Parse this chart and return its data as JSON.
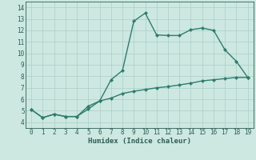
{
  "xlabel": "Humidex (Indice chaleur)",
  "xlim": [
    -0.5,
    19.5
  ],
  "ylim": [
    3.5,
    14.5
  ],
  "xticks": [
    0,
    1,
    2,
    3,
    4,
    5,
    6,
    7,
    8,
    9,
    10,
    11,
    12,
    13,
    14,
    15,
    16,
    17,
    18,
    19
  ],
  "yticks": [
    4,
    5,
    6,
    7,
    8,
    9,
    10,
    11,
    12,
    13,
    14
  ],
  "line1_x": [
    0,
    1,
    2,
    3,
    4,
    5,
    6,
    7,
    8,
    9,
    10,
    11,
    12,
    13,
    14,
    15,
    16,
    17,
    18,
    19
  ],
  "line1_y": [
    5.1,
    4.4,
    4.7,
    4.5,
    4.5,
    5.4,
    5.85,
    7.7,
    8.5,
    12.8,
    13.5,
    11.6,
    11.55,
    11.55,
    12.05,
    12.2,
    12.0,
    10.3,
    9.3,
    7.9
  ],
  "line2_x": [
    0,
    1,
    2,
    3,
    4,
    5,
    6,
    7,
    8,
    9,
    10,
    11,
    12,
    13,
    14,
    15,
    16,
    17,
    18,
    19
  ],
  "line2_y": [
    5.1,
    4.4,
    4.7,
    4.5,
    4.5,
    5.15,
    5.85,
    6.1,
    6.5,
    6.7,
    6.85,
    7.0,
    7.1,
    7.25,
    7.4,
    7.6,
    7.7,
    7.8,
    7.9,
    7.9
  ],
  "line_color": "#2e7d6e",
  "bg_color": "#cce8e0",
  "grid_color": "#aacfc7",
  "font_color": "#2e5d54",
  "marker": "D",
  "marker_size": 2.2,
  "line_width": 1.0
}
